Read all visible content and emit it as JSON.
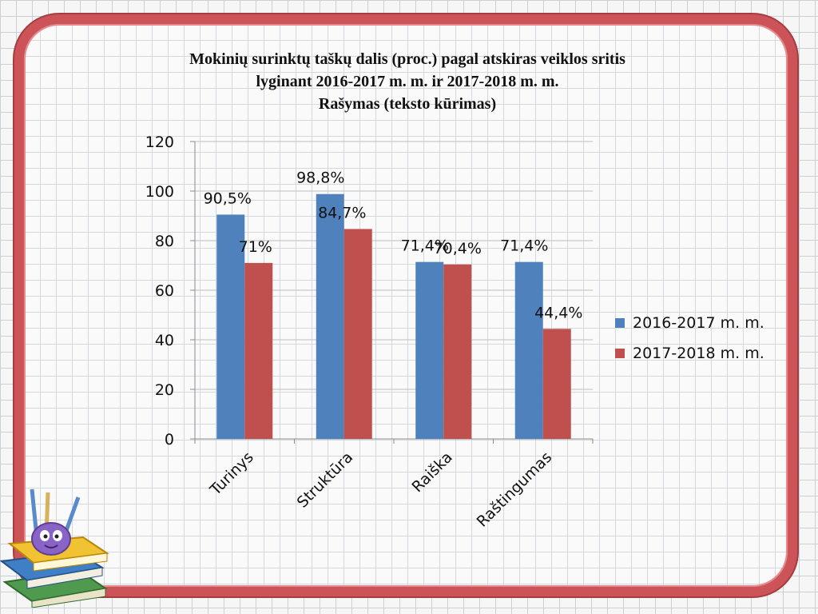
{
  "chart_data": {
    "type": "bar",
    "title_lines": [
      "Mokinių surinktų taškų dalis (proc.) pagal atskiras veiklos sritis",
      "lyginant 2016-2017 m. m. ir 2017-2018 m. m.",
      "Rašymas (teksto kūrimas)"
    ],
    "categories": [
      "Turinys",
      "Struktūra",
      "Raiška",
      "Raštingumas"
    ],
    "series": [
      {
        "name": "2016-2017 m. m.",
        "values": [
          90.5,
          98.8,
          71.4,
          71.4
        ],
        "labels": [
          "90,5%",
          "98,8%",
          "71,4%",
          "71,4%"
        ],
        "color": "#4f81bd"
      },
      {
        "name": "2017-2018 m. m.",
        "values": [
          71,
          84.7,
          70.4,
          44.4
        ],
        "labels": [
          "71%",
          "84,7%",
          "70,4%",
          "44,4%"
        ],
        "color": "#c0504d"
      }
    ],
    "ylim": [
      0,
      120
    ],
    "yticks": [
      "0",
      "20",
      "40",
      "60",
      "80",
      "100",
      "120"
    ],
    "grid": true,
    "legend_position": "right"
  },
  "colors": {
    "frame": "#cc5458"
  }
}
